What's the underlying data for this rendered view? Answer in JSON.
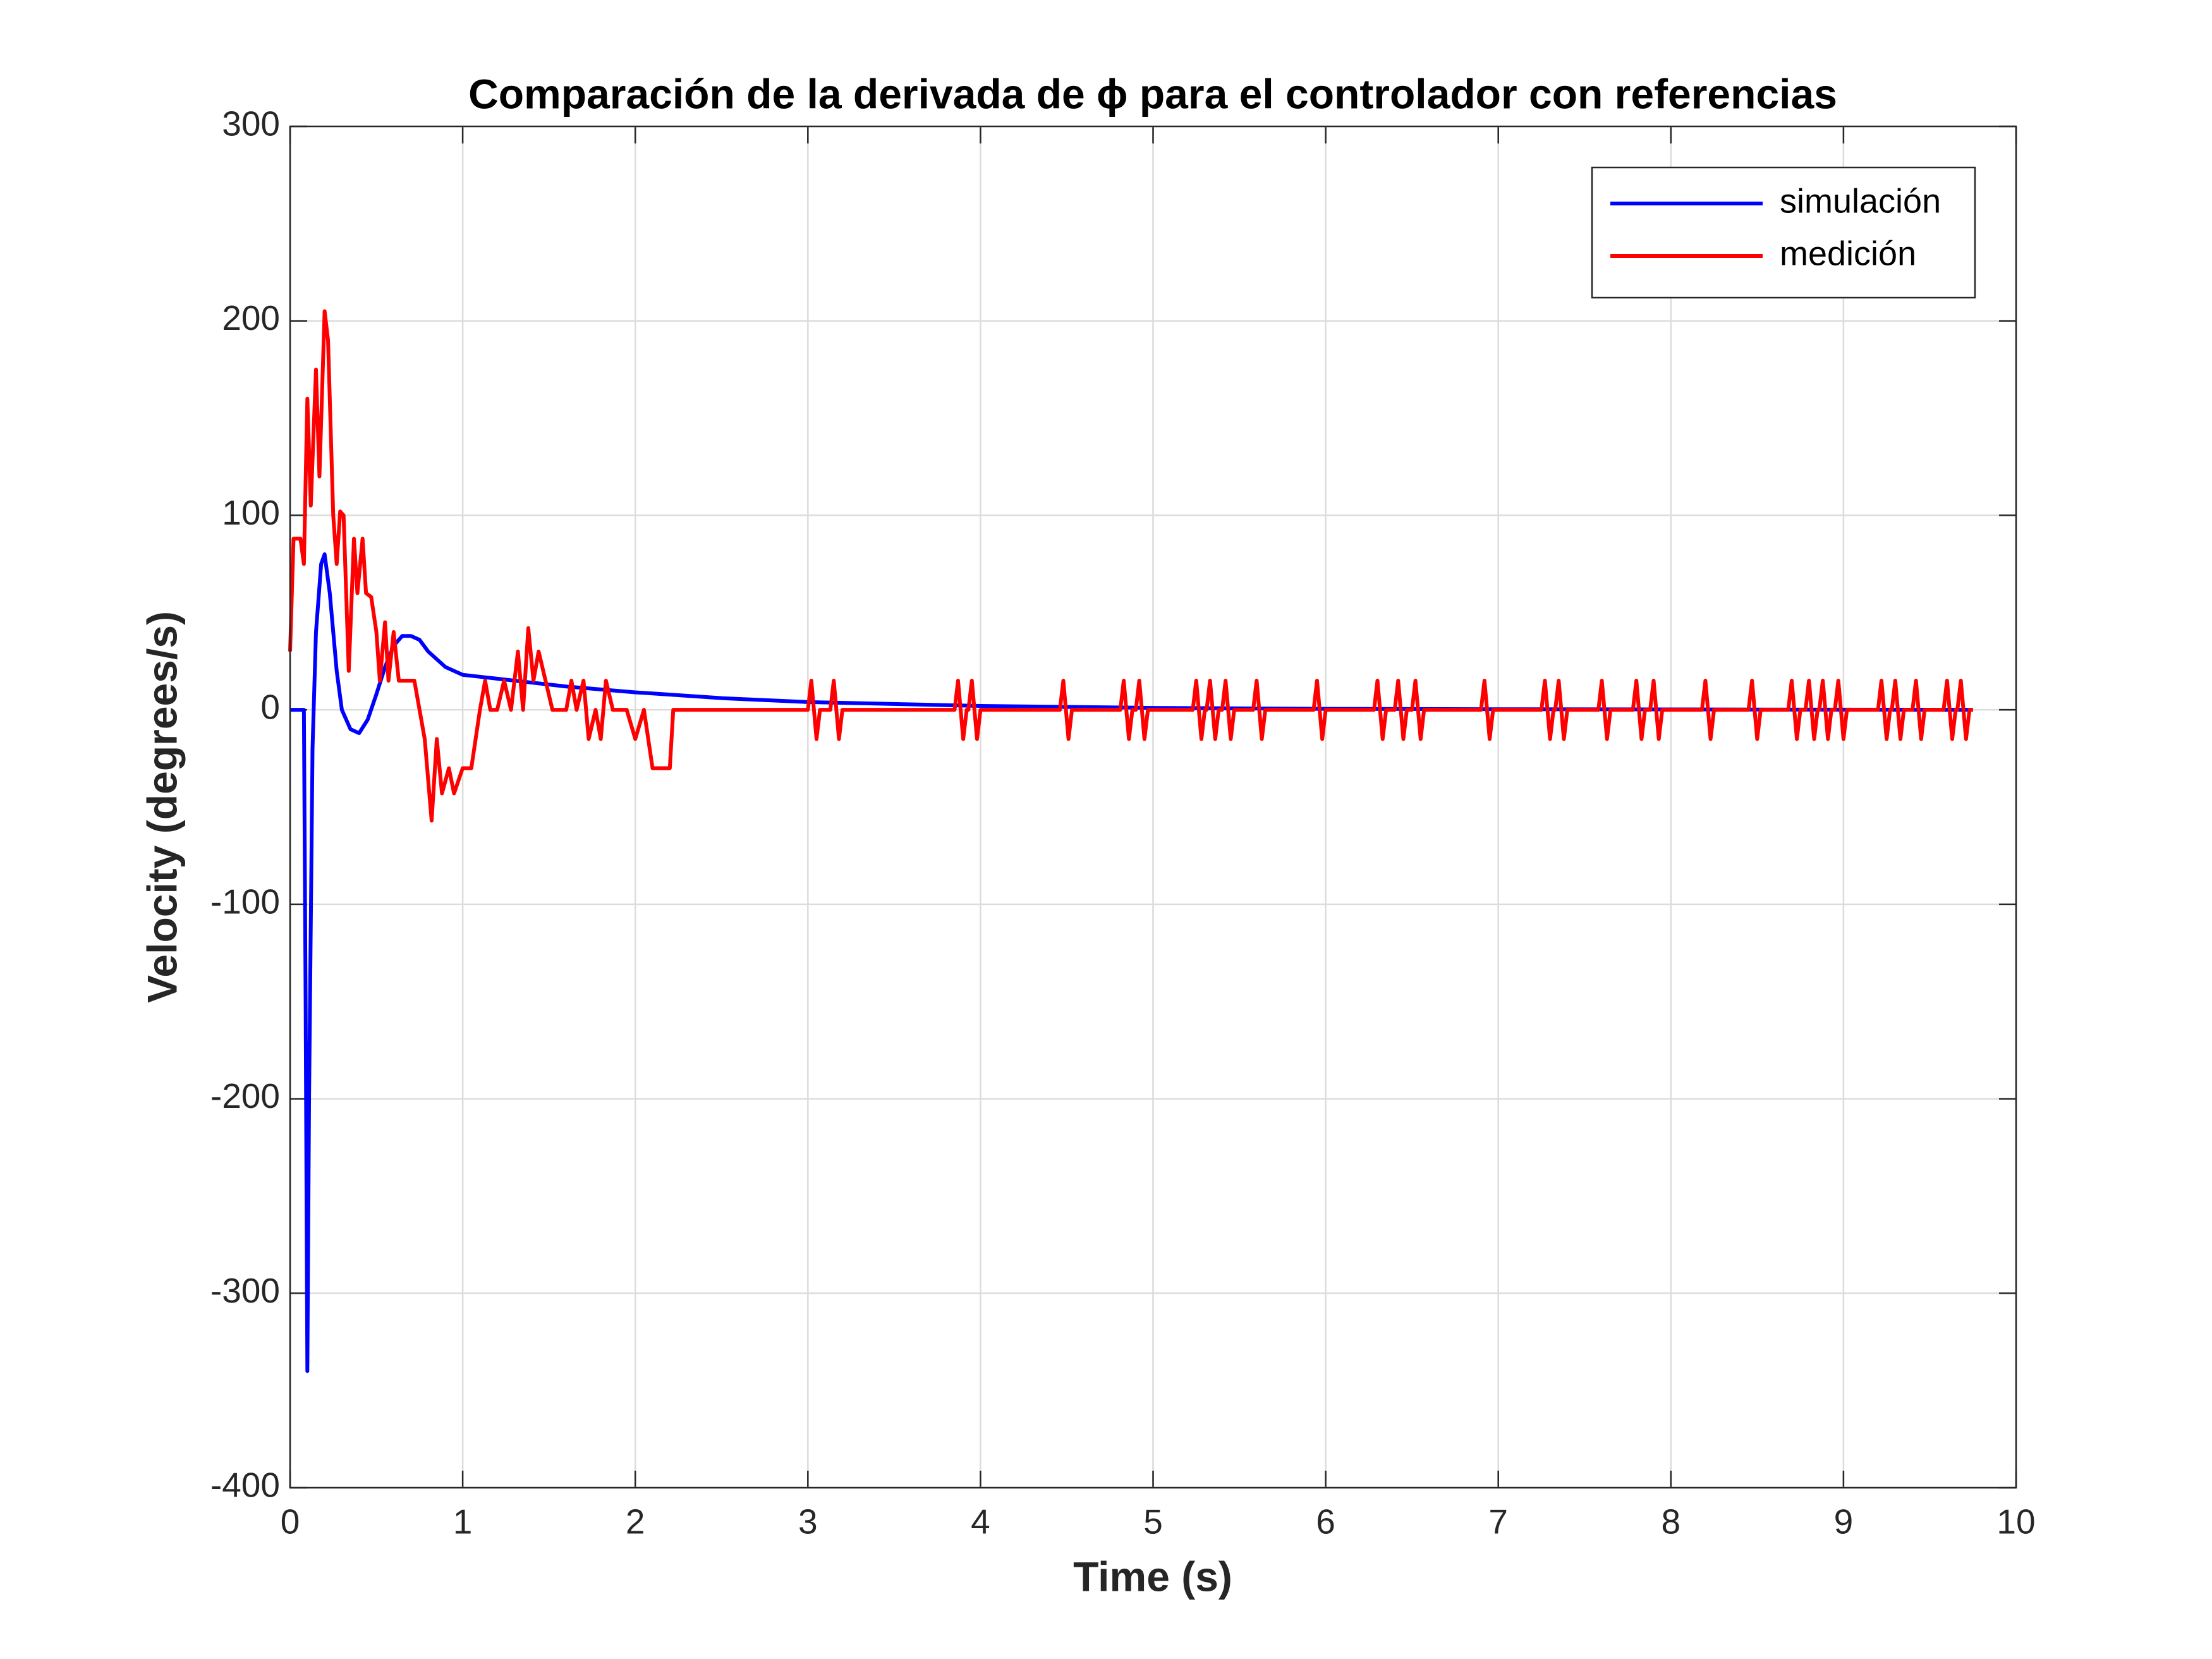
{
  "chart_data": {
    "type": "line",
    "title": "Comparación de la derivada de ϕ para el controlador con referencias",
    "xlabel": "Time (s)",
    "ylabel": "Velocity (degrees/s)",
    "xlim": [
      0,
      10
    ],
    "xticks": [
      0,
      1,
      2,
      3,
      4,
      5,
      6,
      7,
      8,
      9,
      10
    ],
    "ylim": [
      -400,
      300
    ],
    "yticks": [
      -400,
      -300,
      -200,
      -100,
      0,
      100,
      200,
      300
    ],
    "grid": true,
    "legend": "northeast",
    "series": [
      {
        "name": "simulación",
        "color": "#0000ff",
        "x": [
          0,
          0.08,
          0.09,
          0.1,
          0.11,
          0.13,
          0.15,
          0.18,
          0.2,
          0.23,
          0.27,
          0.3,
          0.35,
          0.4,
          0.45,
          0.5,
          0.55,
          0.6,
          0.65,
          0.7,
          0.75,
          0.8,
          0.9,
          1.0,
          1.1,
          1.2,
          1.4,
          1.6,
          2.0,
          2.5,
          3.0,
          4.0,
          5.0,
          6.0,
          7.0,
          8.0,
          9.0,
          9.75
        ],
        "values": [
          0,
          0,
          -150,
          -340,
          -200,
          -20,
          40,
          75,
          80,
          60,
          20,
          0,
          -10,
          -12,
          -5,
          8,
          22,
          33,
          38,
          38,
          36,
          30,
          22,
          18,
          17,
          16,
          14,
          12,
          9,
          6,
          4,
          2,
          1,
          0.5,
          0.3,
          0.2,
          0.1,
          0
        ]
      },
      {
        "name": "medición",
        "color": "#ff0000",
        "x": [
          0,
          0.02,
          0.06,
          0.08,
          0.1,
          0.12,
          0.15,
          0.17,
          0.2,
          0.22,
          0.25,
          0.27,
          0.29,
          0.31,
          0.34,
          0.37,
          0.39,
          0.42,
          0.44,
          0.47,
          0.5,
          0.52,
          0.55,
          0.57,
          0.6,
          0.63,
          0.68,
          0.72,
          0.78,
          0.82,
          0.85,
          0.88,
          0.92,
          0.95,
          1.0,
          1.05,
          1.1,
          1.13,
          1.16,
          1.2,
          1.24,
          1.28,
          1.32,
          1.35,
          1.38,
          1.41,
          1.44,
          1.48,
          1.52,
          1.6,
          1.63,
          1.66,
          1.7,
          1.73,
          1.77,
          1.8,
          1.83,
          1.87,
          1.95,
          2.0,
          2.05,
          2.1,
          2.2,
          2.22,
          3.0,
          3.02,
          3.05,
          3.07,
          3.13,
          3.15,
          3.18,
          3.2,
          3.85,
          3.87,
          3.9,
          3.92,
          3.93,
          3.95,
          3.98,
          4.0,
          4.46,
          4.48,
          4.51,
          4.53,
          4.81,
          4.83,
          4.86,
          4.88,
          4.9,
          4.92,
          4.95,
          4.97,
          5.23,
          5.25,
          5.28,
          5.3,
          5.31,
          5.33,
          5.36,
          5.38,
          5.4,
          5.42,
          5.45,
          5.47,
          5.58,
          5.6,
          5.63,
          5.65,
          5.93,
          5.95,
          5.98,
          6.0,
          6.28,
          6.3,
          6.33,
          6.35,
          6.4,
          6.42,
          6.45,
          6.47,
          6.5,
          6.52,
          6.55,
          6.57,
          6.9,
          6.92,
          6.95,
          6.97,
          7.25,
          7.27,
          7.3,
          7.32,
          7.33,
          7.35,
          7.38,
          7.4,
          7.58,
          7.6,
          7.63,
          7.65,
          7.78,
          7.8,
          7.83,
          7.85,
          7.88,
          7.9,
          7.93,
          7.95,
          8.18,
          8.2,
          8.23,
          8.25,
          8.45,
          8.47,
          8.5,
          8.52,
          8.68,
          8.7,
          8.73,
          8.75,
          8.78,
          8.8,
          8.83,
          8.85,
          8.86,
          8.88,
          8.91,
          8.93,
          8.95,
          8.97,
          9.0,
          9.02,
          9.2,
          9.22,
          9.25,
          9.27,
          9.28,
          9.3,
          9.33,
          9.35,
          9.4,
          9.42,
          9.45,
          9.47,
          9.58,
          9.6,
          9.63,
          9.65,
          9.66,
          9.68,
          9.71,
          9.73,
          9.75
        ],
        "values": [
          30,
          88,
          88,
          75,
          160,
          105,
          175,
          120,
          205,
          190,
          100,
          75,
          102,
          100,
          20,
          88,
          60,
          88,
          60,
          58,
          40,
          15,
          45,
          15,
          40,
          15,
          15,
          15,
          -15,
          -57,
          -15,
          -43,
          -30,
          -43,
          -30,
          -30,
          0,
          15,
          0,
          0,
          15,
          0,
          30,
          0,
          42,
          15,
          30,
          15,
          0,
          0,
          15,
          0,
          15,
          -15,
          0,
          -15,
          15,
          0,
          0,
          -15,
          0,
          -30,
          -30,
          0,
          0,
          15,
          -15,
          0,
          0,
          15,
          -15,
          0,
          0,
          15,
          -15,
          0,
          0,
          15,
          -15,
          0,
          0,
          15,
          -15,
          0,
          0,
          15,
          -15,
          0,
          0,
          15,
          -15,
          0,
          0,
          15,
          -15,
          0,
          0,
          15,
          -15,
          0,
          0,
          15,
          -15,
          0,
          0,
          15,
          -15,
          0,
          0,
          15,
          -15,
          0,
          0,
          15,
          -15,
          0,
          0,
          15,
          -15,
          0,
          0,
          15,
          -15,
          0,
          0,
          15,
          -15,
          0,
          0,
          15,
          -15,
          0,
          0,
          15,
          -15,
          0,
          0,
          15,
          -15,
          0,
          0,
          15,
          -15,
          0,
          0,
          15,
          -15,
          0,
          0,
          15,
          -15,
          0,
          0,
          15,
          -15,
          0,
          0,
          15,
          -15,
          0,
          0,
          15,
          -15,
          0,
          0,
          15,
          -15,
          0,
          0,
          15,
          -15,
          0,
          0,
          15,
          -15,
          0,
          0,
          15,
          -15,
          0,
          0,
          15,
          -15,
          0,
          0,
          15,
          -15,
          0,
          0,
          15,
          -15,
          0,
          0
        ]
      }
    ]
  }
}
